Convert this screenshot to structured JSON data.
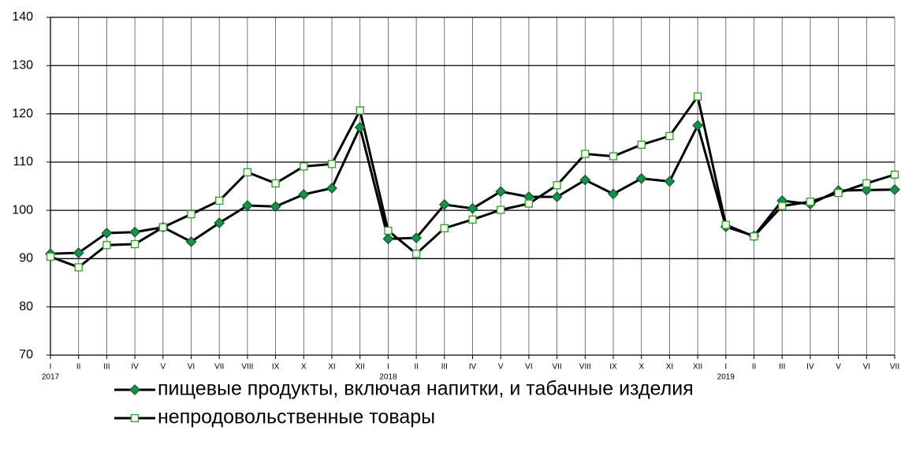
{
  "chart_data": {
    "type": "line",
    "categories": [
      "I",
      "II",
      "III",
      "IV",
      "V",
      "VI",
      "VII",
      "VIII",
      "IX",
      "X",
      "XI",
      "XII",
      "I",
      "II",
      "III",
      "IV",
      "V",
      "VI",
      "VII",
      "VIII",
      "IX",
      "X",
      "XI",
      "XII",
      "I",
      "II",
      "III",
      "IV",
      "V",
      "VI",
      "VII"
    ],
    "category_years": [
      "2017",
      null,
      null,
      null,
      null,
      null,
      null,
      null,
      null,
      null,
      null,
      null,
      "2018",
      null,
      null,
      null,
      null,
      null,
      null,
      null,
      null,
      null,
      null,
      null,
      "2019",
      null,
      null,
      null,
      null,
      null,
      null
    ],
    "series": [
      {
        "name": "пищевые продукты, включая напитки, и табачные изделия",
        "color": "#000000",
        "marker": "diamond",
        "marker_fill": "#15934a",
        "marker_stroke": "#0b5e2c",
        "values": [
          91.0,
          91.2,
          95.3,
          95.5,
          96.5,
          93.5,
          97.4,
          101.0,
          100.8,
          103.3,
          104.6,
          117.2,
          94.1,
          94.3,
          101.2,
          100.4,
          103.9,
          102.8,
          102.8,
          106.3,
          103.4,
          106.6,
          106.0,
          117.6,
          96.6,
          94.7,
          102.0,
          101.3,
          104.1,
          104.2,
          104.3
        ]
      },
      {
        "name": "непродовольственные товары",
        "color": "#000000",
        "marker": "square",
        "marker_fill": "#f4fbe8",
        "marker_stroke": "#2e9e2e",
        "values": [
          90.4,
          88.2,
          92.8,
          93.0,
          96.5,
          99.2,
          102.0,
          107.9,
          105.6,
          109.1,
          109.6,
          120.7,
          95.8,
          91.0,
          96.3,
          98.1,
          100.1,
          101.4,
          105.2,
          111.7,
          111.2,
          113.6,
          115.4,
          123.6,
          97.0,
          94.6,
          100.9,
          101.8,
          103.6,
          105.6,
          107.4
        ]
      }
    ],
    "ylim": [
      70,
      140
    ],
    "yticks": [
      70,
      80,
      90,
      100,
      110,
      120,
      130,
      140
    ],
    "grid": true
  }
}
